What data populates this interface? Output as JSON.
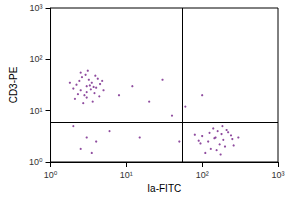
{
  "chart_data": {
    "type": "scatter",
    "x_label": "Ia-FITC",
    "y_label": "CD3-PE",
    "log": true,
    "grid": false,
    "color": "#7b2d8e",
    "marker": "circle",
    "xlim": [
      1,
      1000
    ],
    "ylim": [
      1,
      1000
    ],
    "xticks": [
      {
        "value": 1,
        "label": "10⁰"
      },
      {
        "value": 10,
        "label": "10¹"
      },
      {
        "value": 100,
        "label": "10²"
      },
      {
        "value": 1000,
        "label": "10³"
      }
    ],
    "yticks": [
      {
        "value": 1,
        "label": "10⁰"
      },
      {
        "value": 10,
        "label": "10¹"
      },
      {
        "value": 100,
        "label": "10²"
      },
      {
        "value": 1000,
        "label": "10³"
      }
    ],
    "gates": {
      "x": 55,
      "y": 6
    },
    "x": [
      3,
      2.5,
      3.5,
      2.8,
      4,
      3.2,
      2.2,
      3.8,
      2.6,
      4.5,
      3,
      3.4,
      2.4,
      4.2,
      2.9,
      3.6,
      2,
      5,
      3.1,
      2.7,
      4.8,
      3.3,
      2.3,
      3.9,
      1.8,
      3,
      4.4,
      2.5,
      3.7,
      2.1,
      150,
      120,
      180,
      200,
      100,
      160,
      250,
      130,
      90,
      220,
      170,
      140,
      300,
      110,
      190,
      80,
      260,
      155,
      210,
      125,
      175,
      240,
      95,
      145,
      185,
      3,
      2.5,
      4,
      20,
      40,
      30,
      15,
      8,
      60,
      100,
      6,
      2,
      3.5,
      50,
      12
    ],
    "values": [
      30,
      25,
      35,
      20,
      28,
      40,
      32,
      22,
      45,
      33,
      18,
      26,
      38,
      42,
      50,
      15,
      27,
      25,
      60,
      14,
      38,
      31,
      21,
      48,
      35,
      23,
      19,
      55,
      29,
      17,
      3,
      2.5,
      3.5,
      2,
      3.2,
      4,
      2.8,
      1.8,
      2.6,
      3.8,
      2.2,
      4.5,
      3,
      1.5,
      2.7,
      3.4,
      2.1,
      1.7,
      4.2,
      3.7,
      1.4,
      3.3,
      2.3,
      2.9,
      5,
      3,
      1.8,
      2.5,
      15,
      8,
      40,
      3,
      20,
      12,
      20,
      4,
      5,
      1.5,
      2.5,
      30
    ]
  }
}
